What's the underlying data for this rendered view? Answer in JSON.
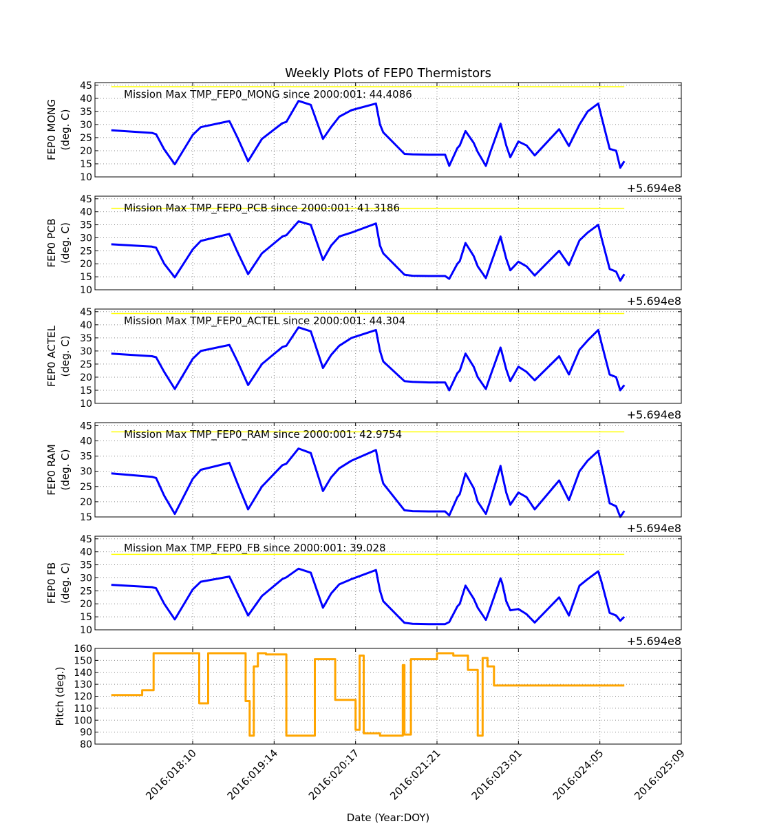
{
  "figure": {
    "title": "Weekly Plots of FEP0 Thermistors",
    "xlabel": "Date (Year:DOY)",
    "x_tick_labels": [
      "2016:018:10",
      "2016:019:14",
      "2016:020:17",
      "2016:021:21",
      "2016:023:01",
      "2016:024:05",
      "2016:025:09"
    ],
    "offset_label": "+5.694e8",
    "colors": {
      "temperature_line": "#0000ff",
      "max_line": "#ffff00",
      "pitch_line": "#ffa500",
      "grid": "#888888"
    }
  },
  "chart_data": [
    {
      "type": "line",
      "ylabel_line1": "FEP0 MONG",
      "ylabel_line2": "(deg. C)",
      "annotation": "Mission Max TMP_FEP0_MONG since 2000:001: 44.4086",
      "mission_max": 44.4086,
      "ylim": [
        10,
        46
      ],
      "yticks": [
        10,
        15,
        20,
        25,
        30,
        35,
        40,
        45
      ],
      "grid": true,
      "x": [
        0.0,
        0.5,
        0.55,
        0.65,
        0.78,
        1.0,
        1.1,
        1.45,
        1.55,
        1.68,
        1.85,
        2.1,
        2.15,
        2.3,
        2.45,
        2.6,
        2.7,
        2.8,
        2.95,
        3.25,
        3.3,
        3.34,
        3.6,
        3.7,
        3.9,
        4.1,
        4.15,
        4.25,
        4.28,
        4.35,
        4.45,
        4.5,
        4.6,
        4.65,
        4.78,
        4.8,
        4.85,
        4.9,
        5.0,
        5.1,
        5.2,
        5.5,
        5.62,
        5.75,
        5.85,
        5.98,
        6.02,
        6.12,
        6.2,
        6.25,
        6.3
      ],
      "values": [
        27.8,
        26.8,
        26.3,
        20.5,
        14.8,
        26.0,
        29.0,
        31.3,
        25.0,
        16.0,
        24.5,
        30.5,
        31.0,
        39.0,
        37.5,
        24.5,
        29.0,
        33.0,
        35.5,
        38.0,
        30.0,
        27.0,
        18.8,
        18.6,
        18.5,
        18.5,
        14.2,
        21.0,
        22.0,
        27.5,
        23.0,
        19.5,
        14.2,
        19.0,
        30.3,
        28.0,
        22.0,
        17.5,
        23.5,
        22.0,
        18.2,
        28.2,
        21.8,
        30.0,
        35.0,
        38.0,
        33.0,
        20.7,
        20.0,
        13.5,
        16.0
      ]
    },
    {
      "type": "line",
      "ylabel_line1": "FEP0 PCB",
      "ylabel_line2": "(deg. C)",
      "annotation": "Mission Max TMP_FEP0_PCB since 2000:001: 41.3186",
      "mission_max": 41.3186,
      "ylim": [
        10,
        46
      ],
      "yticks": [
        10,
        15,
        20,
        25,
        30,
        35,
        40,
        45
      ],
      "grid": true,
      "x": [
        0.0,
        0.5,
        0.55,
        0.65,
        0.78,
        1.0,
        1.1,
        1.45,
        1.55,
        1.68,
        1.85,
        2.1,
        2.15,
        2.3,
        2.45,
        2.6,
        2.7,
        2.8,
        2.95,
        3.25,
        3.3,
        3.34,
        3.6,
        3.7,
        3.9,
        4.1,
        4.15,
        4.25,
        4.28,
        4.35,
        4.45,
        4.5,
        4.6,
        4.65,
        4.78,
        4.8,
        4.85,
        4.9,
        5.0,
        5.1,
        5.2,
        5.5,
        5.62,
        5.75,
        5.85,
        5.98,
        6.02,
        6.12,
        6.2,
        6.25,
        6.3
      ],
      "values": [
        27.5,
        26.6,
        26.2,
        20.0,
        14.8,
        25.5,
        28.8,
        31.5,
        24.5,
        16.0,
        24.0,
        30.5,
        31.0,
        36.3,
        35.0,
        21.5,
        27.0,
        30.5,
        32.0,
        35.5,
        27.0,
        24.0,
        15.8,
        15.4,
        15.3,
        15.3,
        14.2,
        20.0,
        21.0,
        28.0,
        23.0,
        19.0,
        14.5,
        19.0,
        30.5,
        28.0,
        22.0,
        17.5,
        20.8,
        19.0,
        15.5,
        25.0,
        19.5,
        29.0,
        32.0,
        35.0,
        30.0,
        18.0,
        17.0,
        13.5,
        16.0
      ]
    },
    {
      "type": "line",
      "ylabel_line1": "FEP0 ACTEL",
      "ylabel_line2": "(deg. C)",
      "annotation": "Mission Max TMP_FEP0_ACTEL since 2000:001: 44.304",
      "mission_max": 44.304,
      "ylim": [
        10,
        46
      ],
      "yticks": [
        10,
        15,
        20,
        25,
        30,
        35,
        40,
        45
      ],
      "grid": true,
      "x": [
        0.0,
        0.5,
        0.55,
        0.65,
        0.78,
        1.0,
        1.1,
        1.45,
        1.55,
        1.68,
        1.85,
        2.1,
        2.15,
        2.3,
        2.45,
        2.6,
        2.7,
        2.8,
        2.95,
        3.25,
        3.3,
        3.34,
        3.6,
        3.7,
        3.9,
        4.1,
        4.15,
        4.25,
        4.28,
        4.35,
        4.45,
        4.5,
        4.6,
        4.65,
        4.78,
        4.8,
        4.85,
        4.9,
        5.0,
        5.1,
        5.2,
        5.5,
        5.62,
        5.75,
        5.85,
        5.98,
        6.02,
        6.12,
        6.2,
        6.25,
        6.3
      ],
      "values": [
        29.0,
        28.0,
        27.6,
        22.0,
        15.5,
        27.0,
        30.0,
        32.3,
        26.0,
        17.0,
        25.0,
        31.5,
        32.0,
        39.0,
        37.5,
        23.5,
        28.5,
        32.0,
        35.0,
        38.0,
        30.0,
        26.0,
        18.5,
        18.2,
        18.0,
        18.0,
        15.0,
        21.5,
        22.5,
        29.0,
        24.0,
        20.0,
        15.5,
        20.0,
        31.3,
        29.0,
        23.0,
        18.5,
        24.0,
        22.0,
        18.8,
        28.0,
        21.0,
        30.5,
        34.0,
        38.0,
        33.0,
        21.0,
        20.0,
        15.0,
        17.0
      ]
    },
    {
      "type": "line",
      "ylabel_line1": "FEP0 RAM",
      "ylabel_line2": "(deg. C)",
      "annotation": "Mission Max TMP_FEP0_RAM since 2000:001: 42.9754",
      "mission_max": 42.9754,
      "ylim": [
        15,
        46
      ],
      "yticks": [
        15,
        20,
        25,
        30,
        35,
        40,
        45
      ],
      "grid": true,
      "x": [
        0.0,
        0.5,
        0.55,
        0.65,
        0.78,
        1.0,
        1.1,
        1.45,
        1.55,
        1.68,
        1.85,
        2.1,
        2.15,
        2.3,
        2.45,
        2.6,
        2.7,
        2.8,
        2.95,
        3.25,
        3.3,
        3.34,
        3.6,
        3.7,
        3.9,
        4.1,
        4.15,
        4.25,
        4.28,
        4.35,
        4.45,
        4.5,
        4.6,
        4.65,
        4.78,
        4.8,
        4.85,
        4.9,
        5.0,
        5.1,
        5.2,
        5.5,
        5.62,
        5.75,
        5.85,
        5.98,
        6.02,
        6.12,
        6.2,
        6.25,
        6.3
      ],
      "values": [
        29.3,
        28.2,
        27.8,
        22.0,
        16.0,
        27.5,
        30.5,
        32.8,
        26.0,
        17.5,
        25.0,
        32.0,
        32.5,
        37.5,
        36.0,
        23.5,
        28.0,
        31.0,
        33.5,
        37.0,
        30.0,
        26.0,
        17.2,
        16.9,
        16.8,
        16.8,
        15.5,
        21.5,
        22.5,
        29.3,
        24.5,
        20.0,
        16.0,
        20.0,
        31.8,
        29.0,
        23.0,
        19.0,
        23.0,
        21.5,
        17.5,
        27.0,
        20.5,
        30.0,
        33.5,
        36.7,
        32.0,
        19.5,
        18.5,
        15.0,
        17.0
      ]
    },
    {
      "type": "line",
      "ylabel_line1": "FEP0 FB",
      "ylabel_line2": "(deg. C)",
      "annotation": "Mission Max TMP_FEP0_FB since 2000:001: 39.028",
      "mission_max": 39.028,
      "ylim": [
        10,
        46
      ],
      "yticks": [
        10,
        15,
        20,
        25,
        30,
        35,
        40,
        45
      ],
      "grid": true,
      "x": [
        0.0,
        0.5,
        0.55,
        0.65,
        0.78,
        1.0,
        1.1,
        1.45,
        1.55,
        1.68,
        1.85,
        2.1,
        2.15,
        2.3,
        2.45,
        2.6,
        2.7,
        2.8,
        2.95,
        3.25,
        3.3,
        3.34,
        3.6,
        3.7,
        3.9,
        4.1,
        4.15,
        4.25,
        4.28,
        4.35,
        4.45,
        4.5,
        4.6,
        4.65,
        4.78,
        4.8,
        4.85,
        4.9,
        5.0,
        5.1,
        5.2,
        5.5,
        5.62,
        5.75,
        5.85,
        5.98,
        6.02,
        6.12,
        6.2,
        6.25,
        6.3
      ],
      "values": [
        27.3,
        26.4,
        26.0,
        20.0,
        14.0,
        25.5,
        28.5,
        30.5,
        24.0,
        15.5,
        23.0,
        29.5,
        30.2,
        33.5,
        32.0,
        18.5,
        24.0,
        27.5,
        29.5,
        33.0,
        25.0,
        21.0,
        12.7,
        12.3,
        12.2,
        12.2,
        13.0,
        19.0,
        20.0,
        27.0,
        22.0,
        18.5,
        13.8,
        18.0,
        29.8,
        28.0,
        21.0,
        17.5,
        18.0,
        16.0,
        12.8,
        22.5,
        15.5,
        27.0,
        29.5,
        32.5,
        28.5,
        16.5,
        15.5,
        13.5,
        15.0
      ]
    },
    {
      "type": "line",
      "ylabel_line1": "Pitch (deg.)",
      "ylabel_line2": "",
      "annotation": "",
      "ylim": [
        80,
        160
      ],
      "yticks": [
        80,
        90,
        100,
        110,
        120,
        130,
        140,
        150,
        160
      ],
      "grid": true,
      "x": [
        0.0,
        0.38,
        0.38,
        0.52,
        0.52,
        1.08,
        1.08,
        1.19,
        1.19,
        1.65,
        1.65,
        1.7,
        1.7,
        1.75,
        1.75,
        1.8,
        1.8,
        1.9,
        1.9,
        2.15,
        2.15,
        2.5,
        2.5,
        2.75,
        2.75,
        3.0,
        3.0,
        3.05,
        3.05,
        3.1,
        3.1,
        3.3,
        3.3,
        3.58,
        3.58,
        3.6,
        3.6,
        3.68,
        3.68,
        4.0,
        4.0,
        4.2,
        4.2,
        4.38,
        4.38,
        4.5,
        4.5,
        4.56,
        4.56,
        4.62,
        4.62,
        4.7,
        4.7,
        4.78,
        4.78,
        4.85,
        4.85,
        4.9,
        4.9,
        5.05,
        5.05,
        5.5,
        5.5,
        5.58,
        5.58,
        5.62,
        5.62,
        6.3
      ],
      "values": [
        121,
        121,
        125,
        125,
        156,
        156,
        114,
        114,
        156,
        156,
        116,
        116,
        87,
        87,
        145,
        145,
        156,
        156,
        155,
        155,
        87,
        87,
        151,
        151,
        117,
        117,
        92,
        92,
        154,
        154,
        89,
        89,
        87,
        87,
        146,
        146,
        88,
        88,
        151,
        151,
        156,
        156,
        154,
        154,
        142,
        142,
        87,
        87,
        152,
        152,
        145,
        145,
        129,
        129,
        129,
        129,
        129,
        129,
        129,
        129,
        129,
        129,
        129,
        129,
        129,
        129,
        129,
        129
      ]
    }
  ]
}
